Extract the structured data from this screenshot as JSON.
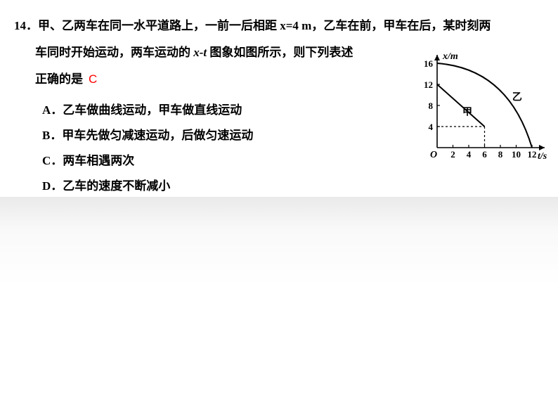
{
  "question": {
    "number": "14．",
    "line1": "甲、乙两车在同一水平道路上，一前一后相距 x=4 m，乙车在前，甲车在后，某时刻两",
    "line2a": "车同时开始运动，两车运动的 ",
    "line2_xtprefix": "x-t ",
    "line2b": "图象如图所示，则下列表述",
    "line3": "正确的是",
    "answer": "C"
  },
  "options": {
    "A": "A．乙车做曲线运动，甲车做直线运动",
    "B": "B．甲车先做匀减速运动，后做匀速运动",
    "C": "C．两车相遇两次",
    "D": "D．乙车的速度不断减小"
  },
  "chart": {
    "x_axis_label": "t/s",
    "y_axis_label": "x/m",
    "y_ticks": [
      4,
      8,
      12,
      16
    ],
    "x_ticks": [
      2,
      4,
      6,
      8,
      10,
      12
    ],
    "x_max": 12,
    "y_max": 16,
    "curve_jia_label": "甲",
    "curve_yi_label": "乙",
    "curve_jia": {
      "start": [
        0,
        12
      ],
      "end": [
        6,
        4
      ],
      "dash_to_y": 4,
      "dash_to_x": 6
    },
    "curve_yi": {
      "start": [
        0,
        16
      ],
      "end": [
        12,
        0
      ],
      "control": [
        9,
        15
      ]
    },
    "axis_color": "#000000",
    "line_width_axis": 1.6,
    "line_width_curve": 2.0,
    "dash_pattern": "3,3",
    "font_size_label": 14,
    "font_size_tick": 13,
    "font_family": "SimSun"
  }
}
